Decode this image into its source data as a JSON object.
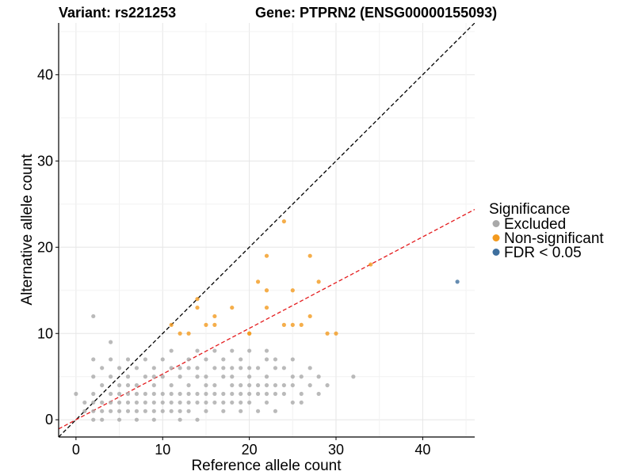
{
  "chart_data": {
    "type": "scatter",
    "title_left": "Variant: rs221253",
    "title_right": "Gene: PTPRN2 (ENSG00000155093)",
    "xlabel": "Reference allele count",
    "ylabel": "Alternative allele count",
    "xlim": [
      -2,
      46
    ],
    "ylim": [
      -2,
      46
    ],
    "x_ticks": [
      0,
      10,
      20,
      30,
      40
    ],
    "y_ticks": [
      0,
      10,
      20,
      30,
      40
    ],
    "grid": true,
    "legend": {
      "title": "Significance",
      "position": "right",
      "entries": [
        {
          "label": "Excluded",
          "color": "#A9A9A9"
        },
        {
          "label": "Non-significant",
          "color": "#F39A1E"
        },
        {
          "label": "FDR < 0.05",
          "color": "#3E6F9E"
        }
      ]
    },
    "reference_lines": [
      {
        "name": "identity",
        "slope": 1,
        "intercept": 0,
        "color": "#000000",
        "dashed": true
      },
      {
        "name": "expected-ratio",
        "slope": 0.53,
        "intercept": 0,
        "color": "#E41A1C",
        "dashed": true
      }
    ],
    "series": [
      {
        "name": "Excluded",
        "color": "#A9A9A9",
        "points": [
          [
            0,
            3
          ],
          [
            1,
            1
          ],
          [
            1,
            2
          ],
          [
            2,
            0
          ],
          [
            2,
            1
          ],
          [
            2,
            2
          ],
          [
            2,
            3
          ],
          [
            2,
            5
          ],
          [
            2,
            7
          ],
          [
            2,
            12
          ],
          [
            3,
            0
          ],
          [
            3,
            1
          ],
          [
            3,
            2
          ],
          [
            3,
            4
          ],
          [
            3,
            6
          ],
          [
            4,
            1
          ],
          [
            4,
            2
          ],
          [
            4,
            3
          ],
          [
            4,
            5
          ],
          [
            4,
            7
          ],
          [
            4,
            9
          ],
          [
            5,
            0
          ],
          [
            5,
            1
          ],
          [
            5,
            2
          ],
          [
            5,
            3
          ],
          [
            5,
            4
          ],
          [
            5,
            6
          ],
          [
            6,
            1
          ],
          [
            6,
            2
          ],
          [
            6,
            3
          ],
          [
            6,
            4
          ],
          [
            6,
            5
          ],
          [
            6,
            7
          ],
          [
            7,
            0
          ],
          [
            7,
            1
          ],
          [
            7,
            2
          ],
          [
            7,
            3
          ],
          [
            7,
            4
          ],
          [
            7,
            6
          ],
          [
            8,
            1
          ],
          [
            8,
            2
          ],
          [
            8,
            3
          ],
          [
            8,
            5
          ],
          [
            8,
            7
          ],
          [
            9,
            0
          ],
          [
            9,
            1
          ],
          [
            9,
            2
          ],
          [
            9,
            3
          ],
          [
            9,
            4
          ],
          [
            9,
            5
          ],
          [
            9,
            6
          ],
          [
            10,
            1
          ],
          [
            10,
            2
          ],
          [
            10,
            3
          ],
          [
            10,
            5
          ],
          [
            10,
            7
          ],
          [
            11,
            1
          ],
          [
            11,
            2
          ],
          [
            11,
            3
          ],
          [
            11,
            4
          ],
          [
            11,
            6
          ],
          [
            11,
            8
          ],
          [
            12,
            0
          ],
          [
            12,
            1
          ],
          [
            12,
            2
          ],
          [
            12,
            3
          ],
          [
            12,
            5
          ],
          [
            12,
            6
          ],
          [
            13,
            1
          ],
          [
            13,
            2
          ],
          [
            13,
            3
          ],
          [
            13,
            4
          ],
          [
            13,
            6
          ],
          [
            13,
            7
          ],
          [
            14,
            0
          ],
          [
            14,
            2
          ],
          [
            14,
            3
          ],
          [
            14,
            5
          ],
          [
            14,
            6
          ],
          [
            14,
            8
          ],
          [
            15,
            1
          ],
          [
            15,
            2
          ],
          [
            15,
            3
          ],
          [
            15,
            4
          ],
          [
            15,
            5
          ],
          [
            15,
            7
          ],
          [
            16,
            2
          ],
          [
            16,
            3
          ],
          [
            16,
            4
          ],
          [
            16,
            6
          ],
          [
            16,
            8
          ],
          [
            17,
            1
          ],
          [
            17,
            2
          ],
          [
            17,
            3
          ],
          [
            17,
            5
          ],
          [
            17,
            6
          ],
          [
            17,
            7
          ],
          [
            18,
            2
          ],
          [
            18,
            3
          ],
          [
            18,
            4
          ],
          [
            18,
            5
          ],
          [
            18,
            6
          ],
          [
            18,
            8
          ],
          [
            19,
            1
          ],
          [
            19,
            2
          ],
          [
            19,
            3
          ],
          [
            19,
            4
          ],
          [
            19,
            6
          ],
          [
            19,
            7
          ],
          [
            20,
            2
          ],
          [
            20,
            3
          ],
          [
            20,
            4
          ],
          [
            20,
            5
          ],
          [
            20,
            6
          ],
          [
            20,
            8
          ],
          [
            21,
            1
          ],
          [
            21,
            3
          ],
          [
            21,
            4
          ],
          [
            21,
            6
          ],
          [
            22,
            2
          ],
          [
            22,
            3
          ],
          [
            22,
            4
          ],
          [
            22,
            5
          ],
          [
            22,
            7
          ],
          [
            22,
            8
          ],
          [
            23,
            1
          ],
          [
            23,
            3
          ],
          [
            23,
            4
          ],
          [
            23,
            6
          ],
          [
            23,
            7
          ],
          [
            24,
            3
          ],
          [
            24,
            4
          ],
          [
            24,
            6
          ],
          [
            25,
            2
          ],
          [
            25,
            4
          ],
          [
            25,
            5
          ],
          [
            25,
            7
          ],
          [
            26,
            2
          ],
          [
            26,
            3
          ],
          [
            26,
            5
          ],
          [
            27,
            4
          ],
          [
            27,
            6
          ],
          [
            28,
            3
          ],
          [
            28,
            5
          ],
          [
            29,
            4
          ],
          [
            32,
            5
          ]
        ]
      },
      {
        "name": "Non-significant",
        "color": "#F39A1E",
        "points": [
          [
            11,
            11
          ],
          [
            12,
            10
          ],
          [
            13,
            10
          ],
          [
            14,
            13
          ],
          [
            14,
            14
          ],
          [
            15,
            11
          ],
          [
            16,
            11
          ],
          [
            16,
            12
          ],
          [
            18,
            13
          ],
          [
            20,
            10
          ],
          [
            20,
            10
          ],
          [
            21,
            16
          ],
          [
            22,
            13
          ],
          [
            22,
            15
          ],
          [
            22,
            19
          ],
          [
            24,
            11
          ],
          [
            24,
            23
          ],
          [
            25,
            15
          ],
          [
            25,
            11
          ],
          [
            26,
            11
          ],
          [
            27,
            12
          ],
          [
            27,
            19
          ],
          [
            28,
            16
          ],
          [
            29,
            10
          ],
          [
            30,
            10
          ],
          [
            34,
            18
          ]
        ]
      },
      {
        "name": "FDR < 0.05",
        "color": "#3E6F9E",
        "points": [
          [
            44,
            16
          ]
        ]
      }
    ]
  }
}
